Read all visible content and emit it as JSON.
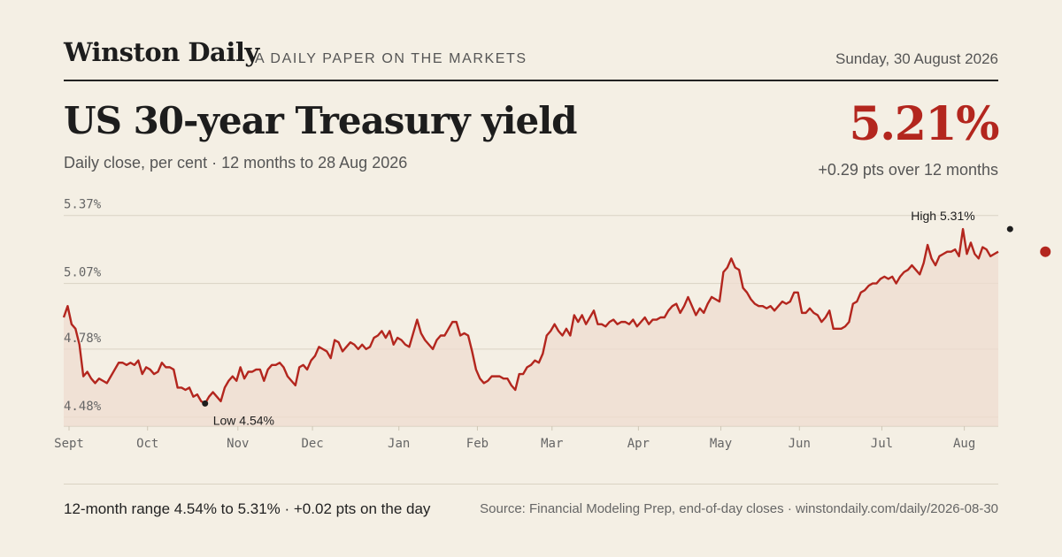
{
  "masthead": {
    "brand": "Winston Daily",
    "tagline": "A DAILY PAPER ON THE MARKETS",
    "date": "Sunday, 30 August 2026"
  },
  "header": {
    "title": "US 30-year Treasury yield",
    "subtitle": "Daily close, per cent · 12 months to 28 Aug 2026",
    "value": "5.21%",
    "change": "+0.29 pts over 12 months"
  },
  "footer": {
    "range": "12-month range 4.54% to 5.31% · +0.02 pts on the day",
    "source": "Source: Financial Modeling Prep, end-of-day closes · winstondaily.com/daily/2026-08-30"
  },
  "colors": {
    "line": "#b3261e",
    "area": "#efdcd0",
    "grid": "#d9d2c3",
    "marker": "#1d1d1d"
  },
  "chart_data": {
    "type": "area",
    "ylim": [
      4.44,
      5.4
    ],
    "yticks": [
      4.48,
      4.78,
      5.07,
      5.37
    ],
    "ytick_labels": [
      "4.48%",
      "4.78%",
      "5.07%",
      "5.37%"
    ],
    "xtick_labels": [
      "Sept",
      "Oct",
      "Nov",
      "Dec",
      "Jan",
      "Feb",
      "Mar",
      "Apr",
      "May",
      "Jun",
      "Jul",
      "Aug"
    ],
    "xtick_positions": [
      0,
      20,
      43,
      62,
      84,
      104,
      123,
      145,
      166,
      186,
      207,
      228
    ],
    "grid": true,
    "annotations": [
      {
        "label": "Low 4.54%",
        "index": 36,
        "value": 4.54
      },
      {
        "label": "High 5.31%",
        "index": 241,
        "value": 5.31
      }
    ],
    "last_point": {
      "index": 250,
      "value": 5.21
    },
    "values": [
      4.92,
      4.97,
      4.89,
      4.87,
      4.8,
      4.66,
      4.68,
      4.65,
      4.63,
      4.65,
      4.64,
      4.63,
      4.66,
      4.69,
      4.72,
      4.72,
      4.71,
      4.72,
      4.71,
      4.73,
      4.67,
      4.7,
      4.69,
      4.67,
      4.68,
      4.72,
      4.7,
      4.7,
      4.69,
      4.61,
      4.61,
      4.6,
      4.61,
      4.57,
      4.58,
      4.55,
      4.54,
      4.57,
      4.59,
      4.57,
      4.55,
      4.61,
      4.64,
      4.66,
      4.64,
      4.7,
      4.65,
      4.68,
      4.68,
      4.69,
      4.69,
      4.64,
      4.69,
      4.71,
      4.71,
      4.72,
      4.7,
      4.66,
      4.64,
      4.62,
      4.7,
      4.71,
      4.69,
      4.73,
      4.75,
      4.79,
      4.78,
      4.77,
      4.74,
      4.82,
      4.81,
      4.77,
      4.79,
      4.81,
      4.8,
      4.78,
      4.8,
      4.78,
      4.79,
      4.83,
      4.84,
      4.86,
      4.83,
      4.86,
      4.8,
      4.83,
      4.82,
      4.8,
      4.79,
      4.85,
      4.91,
      4.85,
      4.82,
      4.8,
      4.78,
      4.82,
      4.84,
      4.84,
      4.87,
      4.9,
      4.9,
      4.84,
      4.85,
      4.84,
      4.77,
      4.69,
      4.65,
      4.63,
      4.64,
      4.66,
      4.66,
      4.66,
      4.65,
      4.65,
      4.62,
      4.6,
      4.67,
      4.67,
      4.7,
      4.71,
      4.73,
      4.72,
      4.76,
      4.84,
      4.86,
      4.89,
      4.86,
      4.84,
      4.87,
      4.84,
      4.93,
      4.9,
      4.93,
      4.89,
      4.92,
      4.95,
      4.89,
      4.89,
      4.88,
      4.9,
      4.91,
      4.89,
      4.9,
      4.9,
      4.89,
      4.91,
      4.88,
      4.9,
      4.92,
      4.89,
      4.91,
      4.91,
      4.92,
      4.92,
      4.95,
      4.97,
      4.98,
      4.94,
      4.97,
      5.01,
      4.97,
      4.93,
      4.96,
      4.94,
      4.98,
      5.01,
      5.0,
      4.99,
      5.12,
      5.14,
      5.18,
      5.14,
      5.13,
      5.05,
      5.03,
      5.0,
      4.98,
      4.97,
      4.97,
      4.96,
      4.97,
      4.95,
      4.97,
      4.99,
      4.98,
      4.99,
      5.03,
      5.03,
      4.94,
      4.94,
      4.96,
      4.94,
      4.93,
      4.9,
      4.92,
      4.95,
      4.87,
      4.87,
      4.87,
      4.88,
      4.9,
      4.98,
      4.99,
      5.03,
      5.04,
      5.06,
      5.07,
      5.07,
      5.09,
      5.1,
      5.09,
      5.1,
      5.07,
      5.1,
      5.12,
      5.13,
      5.15,
      5.13,
      5.11,
      5.16,
      5.24,
      5.18,
      5.15,
      5.19,
      5.2,
      5.21,
      5.21,
      5.22,
      5.19,
      5.31,
      5.2,
      5.25,
      5.2,
      5.18,
      5.23,
      5.22,
      5.19,
      5.2,
      5.21
    ]
  }
}
